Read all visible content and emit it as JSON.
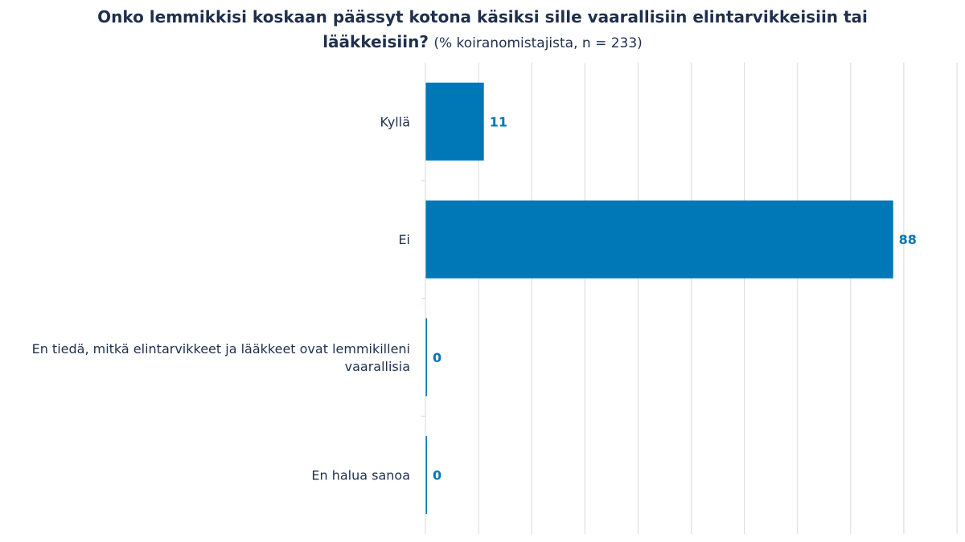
{
  "title_line1": "Onko lemmikkisi koskaan päässyt kotona käsiksi sille vaarallisiin elintarvikkeisiin tai",
  "title_line2_bold": "lääkkeisiin?",
  "subtitle": "(% koiranomistajista, n = 233)",
  "colors": {
    "bar": "#0077b6",
    "grid": "#d9d9d9",
    "text": "#1f2f4d"
  },
  "chart_data": {
    "type": "bar",
    "orientation": "horizontal",
    "categories": [
      [
        "Kyllä"
      ],
      [
        "Ei"
      ],
      [
        "En tiedä, mitkä elintarvikkeet ja lääkkeet ovat lemmikilleni",
        "vaarallisia"
      ],
      [
        "En halua sanoa"
      ]
    ],
    "values": [
      11,
      88,
      0,
      0
    ],
    "value_labels": [
      "11",
      "88",
      "0",
      "0"
    ],
    "xlim": [
      0,
      100
    ],
    "grid": true,
    "legend": "none"
  }
}
